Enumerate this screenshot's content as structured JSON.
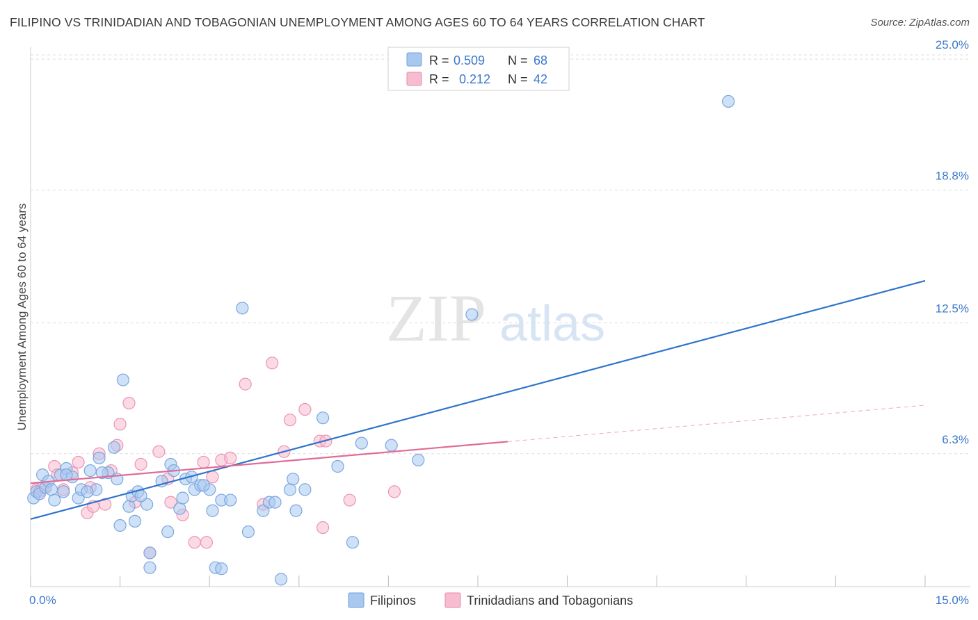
{
  "header": {
    "title": "FILIPINO VS TRINIDADIAN AND TOBAGONIAN UNEMPLOYMENT AMONG AGES 60 TO 64 YEARS CORRELATION CHART",
    "source": "Source: ZipAtlas.com"
  },
  "watermark": {
    "zip": "ZIP",
    "atlas": "atlas"
  },
  "stats_legend": [
    {
      "r_label": "R =",
      "r_value": "0.509",
      "n_label": "N =",
      "n_value": "68",
      "color": "#a8c8f0",
      "border": "#6fa0dc"
    },
    {
      "r_label": "R =",
      "r_value": "0.212",
      "n_label": "N =",
      "n_value": "42",
      "color": "#f7bcd0",
      "border": "#e88aaa"
    }
  ],
  "colors": {
    "blue_fill": "#a8c8f0",
    "blue_stroke": "#7aa7df",
    "blue_line": "#2f72cc",
    "pink_fill": "#f7bcd0",
    "pink_stroke": "#eb94b2",
    "pink_line": "#e06b98",
    "grid": "#dddddd",
    "axis_text": "#3b78c9"
  },
  "chart_data": {
    "type": "scatter",
    "title": "FILIPINO VS TRINIDADIAN AND TOBAGONIAN UNEMPLOYMENT AMONG AGES 60 TO 64 YEARS CORRELATION CHART",
    "xlabel": "",
    "ylabel": "Unemployment Among Ages 60 to 64 years",
    "xlim": [
      0,
      15
    ],
    "ylim": [
      0,
      25.5
    ],
    "x_tick_labels": [
      "0.0%",
      "15.0%"
    ],
    "y_ticks": [
      6.3,
      12.5,
      18.8,
      25.0
    ],
    "y_tick_labels": [
      "6.3%",
      "12.5%",
      "18.8%",
      "25.0%"
    ],
    "grid": true,
    "legend_position": "bottom",
    "series": [
      {
        "name": "Filipinos",
        "r": 0.509,
        "n": 68,
        "trend": {
          "x0": 0.0,
          "y0": 3.2,
          "x1": 15.0,
          "y1": 14.5,
          "solid_until": 15.0
        },
        "points": [
          [
            0.05,
            4.2
          ],
          [
            0.1,
            4.5
          ],
          [
            0.15,
            4.4
          ],
          [
            0.2,
            5.3
          ],
          [
            0.25,
            4.7
          ],
          [
            0.3,
            5.0
          ],
          [
            0.35,
            4.6
          ],
          [
            0.4,
            4.1
          ],
          [
            0.5,
            5.3
          ],
          [
            0.55,
            4.5
          ],
          [
            0.6,
            5.6
          ],
          [
            0.7,
            5.2
          ],
          [
            0.8,
            4.2
          ],
          [
            0.85,
            4.6
          ],
          [
            1.0,
            5.5
          ],
          [
            1.1,
            4.6
          ],
          [
            1.15,
            6.1
          ],
          [
            1.3,
            5.4
          ],
          [
            1.4,
            6.6
          ],
          [
            1.45,
            5.1
          ],
          [
            1.5,
            2.9
          ],
          [
            1.55,
            9.8
          ],
          [
            1.65,
            3.8
          ],
          [
            1.7,
            4.3
          ],
          [
            1.75,
            3.1
          ],
          [
            1.8,
            4.5
          ],
          [
            1.95,
            3.9
          ],
          [
            2.0,
            1.6
          ],
          [
            2.0,
            0.9
          ],
          [
            2.2,
            5.0
          ],
          [
            2.3,
            2.6
          ],
          [
            2.35,
            5.8
          ],
          [
            2.4,
            5.5
          ],
          [
            2.5,
            3.7
          ],
          [
            2.55,
            4.2
          ],
          [
            2.6,
            5.1
          ],
          [
            2.7,
            5.2
          ],
          [
            2.75,
            4.6
          ],
          [
            2.85,
            4.8
          ],
          [
            3.0,
            4.6
          ],
          [
            3.05,
            3.6
          ],
          [
            3.1,
            0.9
          ],
          [
            3.2,
            0.85
          ],
          [
            3.2,
            4.1
          ],
          [
            3.35,
            4.1
          ],
          [
            3.55,
            13.2
          ],
          [
            3.65,
            2.6
          ],
          [
            3.9,
            3.6
          ],
          [
            4.0,
            4.0
          ],
          [
            4.2,
            0.35
          ],
          [
            4.35,
            4.6
          ],
          [
            4.4,
            5.1
          ],
          [
            4.45,
            3.6
          ],
          [
            4.6,
            4.6
          ],
          [
            4.9,
            8.0
          ],
          [
            5.15,
            5.7
          ],
          [
            5.4,
            2.1
          ],
          [
            5.55,
            6.8
          ],
          [
            6.05,
            6.7
          ],
          [
            6.5,
            6.0
          ],
          [
            7.4,
            12.9
          ],
          [
            11.7,
            23.0
          ],
          [
            0.6,
            5.3
          ],
          [
            1.2,
            5.4
          ],
          [
            2.9,
            4.8
          ],
          [
            4.1,
            4.0
          ],
          [
            1.85,
            4.3
          ],
          [
            0.95,
            4.5
          ]
        ]
      },
      {
        "name": "Trinidadians and Tobagonians",
        "r": 0.212,
        "n": 42,
        "trend": {
          "x0": 0.0,
          "y0": 4.9,
          "x1": 15.0,
          "y1": 8.6,
          "solid_until": 8.0
        },
        "points": [
          [
            0.1,
            4.6
          ],
          [
            0.15,
            4.5
          ],
          [
            0.2,
            4.7
          ],
          [
            0.25,
            4.7
          ],
          [
            0.4,
            5.7
          ],
          [
            0.45,
            5.3
          ],
          [
            0.55,
            4.6
          ],
          [
            0.7,
            5.4
          ],
          [
            0.8,
            5.9
          ],
          [
            0.95,
            3.5
          ],
          [
            1.0,
            4.7
          ],
          [
            1.05,
            3.8
          ],
          [
            1.15,
            6.3
          ],
          [
            1.25,
            3.9
          ],
          [
            1.35,
            5.5
          ],
          [
            1.45,
            6.7
          ],
          [
            1.5,
            7.7
          ],
          [
            1.65,
            8.7
          ],
          [
            1.75,
            4.0
          ],
          [
            1.85,
            5.8
          ],
          [
            2.0,
            1.6
          ],
          [
            2.15,
            6.4
          ],
          [
            2.3,
            5.1
          ],
          [
            2.35,
            4.0
          ],
          [
            2.55,
            3.4
          ],
          [
            2.75,
            2.1
          ],
          [
            2.95,
            2.1
          ],
          [
            2.9,
            5.9
          ],
          [
            3.05,
            5.2
          ],
          [
            3.2,
            6.0
          ],
          [
            3.35,
            6.1
          ],
          [
            3.6,
            9.6
          ],
          [
            3.9,
            3.9
          ],
          [
            4.05,
            10.6
          ],
          [
            4.25,
            6.4
          ],
          [
            4.35,
            7.9
          ],
          [
            4.6,
            8.4
          ],
          [
            4.85,
            6.9
          ],
          [
            4.95,
            6.9
          ],
          [
            4.9,
            2.8
          ],
          [
            5.35,
            4.1
          ],
          [
            6.1,
            4.5
          ]
        ]
      }
    ]
  },
  "bottom_legend": {
    "items": [
      {
        "label": "Filipinos"
      },
      {
        "label": "Trinidadians and Tobagonians"
      }
    ]
  }
}
